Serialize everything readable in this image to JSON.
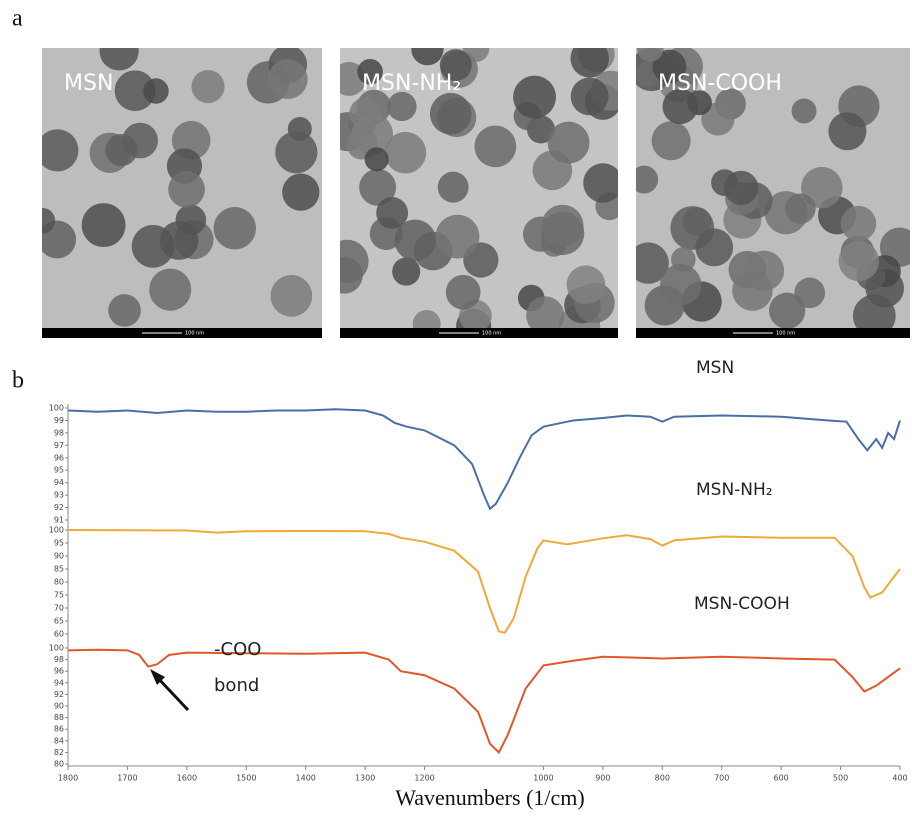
{
  "figure": {
    "panel_labels": [
      "a",
      "b"
    ]
  },
  "images": [
    {
      "label": "MSN",
      "scale_bar": "100 nm"
    },
    {
      "label": "MSN-NH₂",
      "scale_bar": "100 nm"
    },
    {
      "label": "MSN-COOH",
      "scale_bar": "100 nm"
    }
  ],
  "chart_data": [
    {
      "type": "line",
      "x": [
        1800,
        1750,
        1700,
        1650,
        1600,
        1550,
        1500,
        1450,
        1400,
        1350,
        1300,
        1270,
        1250,
        1230,
        1200,
        1150,
        1120,
        1100,
        1090,
        1080,
        1060,
        1040,
        1020,
        1000,
        950,
        900,
        860,
        820,
        800,
        780,
        700,
        600,
        520,
        490,
        470,
        455,
        440,
        430,
        420,
        410,
        400
      ],
      "series": [
        {
          "name": "MSN",
          "color": "#4a6fa5",
          "values": [
            99.8,
            99.7,
            99.8,
            99.6,
            99.8,
            99.7,
            99.7,
            99.8,
            99.8,
            99.9,
            99.8,
            99.4,
            98.8,
            98.5,
            98.2,
            97,
            95.5,
            93,
            91.9,
            92.3,
            94,
            96,
            97.8,
            98.5,
            99,
            99.2,
            99.4,
            99.3,
            98.9,
            99.3,
            99.4,
            99.3,
            99,
            98.9,
            97.5,
            96.6,
            97.5,
            96.8,
            98,
            97.5,
            99
          ]
        }
      ],
      "xlim": [
        1800,
        400
      ],
      "ylim": [
        91,
        100
      ],
      "yticks": [
        91,
        92,
        93,
        94,
        95,
        96,
        97,
        98,
        99,
        100
      ]
    },
    {
      "type": "line",
      "x": [
        1800,
        1700,
        1600,
        1550,
        1500,
        1400,
        1300,
        1260,
        1240,
        1200,
        1150,
        1110,
        1090,
        1075,
        1065,
        1050,
        1030,
        1010,
        1000,
        960,
        900,
        860,
        820,
        800,
        780,
        700,
        600,
        510,
        480,
        460,
        450,
        430,
        400
      ],
      "series": [
        {
          "name": "MSN-NH₂",
          "color": "#f0a838",
          "values": [
            100,
            99.9,
            99.8,
            99,
            99.5,
            99.6,
            99.5,
            98.5,
            97,
            95.5,
            92,
            84,
            70,
            61,
            60.5,
            66,
            82,
            93,
            96,
            94.5,
            96.8,
            98,
            96.5,
            94,
            96,
            97.5,
            97,
            97,
            90,
            78,
            74,
            76,
            85
          ]
        }
      ],
      "xlim": [
        1800,
        400
      ],
      "ylim": [
        60,
        100
      ],
      "yticks": [
        60,
        65,
        70,
        75,
        80,
        85,
        90,
        95,
        100
      ]
    },
    {
      "type": "line",
      "x": [
        1800,
        1750,
        1700,
        1680,
        1665,
        1650,
        1630,
        1600,
        1500,
        1400,
        1300,
        1260,
        1240,
        1200,
        1150,
        1110,
        1090,
        1075,
        1060,
        1030,
        1000,
        950,
        900,
        800,
        700,
        600,
        510,
        480,
        460,
        440,
        400
      ],
      "series": [
        {
          "name": "MSN-COOH",
          "color": "#e0572a",
          "values": [
            99.6,
            99.7,
            99.6,
            98.8,
            96.8,
            97.2,
            98.8,
            99.2,
            99.1,
            99,
            99.2,
            98,
            96,
            95.3,
            93,
            89,
            83.5,
            82,
            85,
            93,
            97,
            97.8,
            98.5,
            98.2,
            98.5,
            98.2,
            98,
            95,
            92.5,
            93.5,
            96.5
          ]
        }
      ],
      "annotation": [
        "-COO",
        "bond"
      ],
      "xlim": [
        1800,
        400
      ],
      "ylim": [
        80,
        100
      ],
      "yticks": [
        80,
        82,
        84,
        86,
        88,
        90,
        92,
        94,
        96,
        98,
        100
      ],
      "xticks": [
        1800,
        1700,
        1600,
        1500,
        1400,
        1300,
        1200,
        1000,
        900,
        800,
        700,
        600,
        500,
        400
      ],
      "xlabel": "Wavenumbers (1/cm)"
    }
  ]
}
